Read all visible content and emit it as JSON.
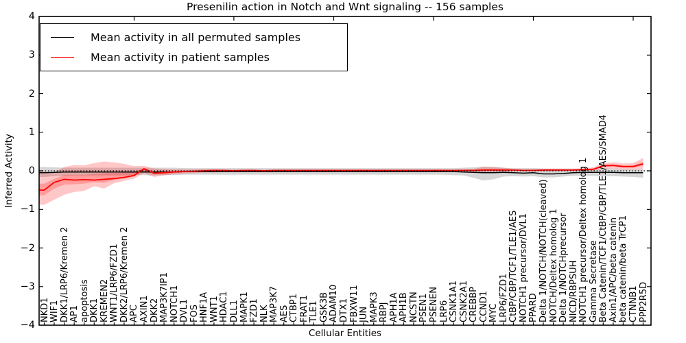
{
  "title": "Presenilin action in Notch and Wnt signaling -- 156 samples",
  "axes": {
    "xlabel": "Cellular Entities",
    "ylabel": "Inferred Activity",
    "ylim": [
      -4,
      4
    ],
    "ytick_labels": [
      "4",
      "3",
      "2",
      "1",
      "0",
      "−1",
      "−2",
      "−3",
      "−4"
    ]
  },
  "legend": {
    "items": [
      {
        "label": "Mean activity in all permuted samples",
        "color": "#000000"
      },
      {
        "label": "Mean activity in patient samples",
        "color": "#ff0000"
      }
    ]
  },
  "chart_data": {
    "type": "line",
    "title": "Presenilin action in Notch and Wnt signaling -- 156 samples",
    "xlabel": "Cellular Entities",
    "ylabel": "Inferred Activity",
    "ylim": [
      -4,
      4
    ],
    "grid": false,
    "legend_position": "upper left",
    "zero_line_style": "dotted",
    "top_tick_indices": [
      9,
      19,
      29,
      39,
      49,
      59
    ],
    "categories": [
      "NKD1",
      "WIF1",
      "DKK1/LRP6/Kremen 2",
      "AP1",
      "apoptosis",
      "DKK1",
      "KREMEN2",
      "WNT1/LRP6/FZD1",
      "DKK2/LRP6/Kremen 2",
      "APC",
      "AXIN1",
      "DKK2",
      "MAP3K7IP1",
      "NOTCH1",
      "DVL1",
      "FOS",
      "HNF1A",
      "WNT1",
      "HDAC1",
      "DLL1",
      "MAPK1",
      "FZD1",
      "NLK",
      "MAP3K7",
      "AES",
      "CTBP1",
      "FRAT1",
      "TLE1",
      "GSK3B",
      "ADAM10",
      "DTX1",
      "FBXW11",
      "JUN",
      "MAPK3",
      "RBPJ",
      "APH1A",
      "APH1B",
      "NCSTN",
      "PSEN1",
      "PSENEN",
      "LRP6",
      "CSNK1A1",
      "CSNK2A1",
      "CREBBP",
      "CCND1",
      "MYC",
      "LRP6/FZD1",
      "CtBP/CBP/TCF1/TLE1/AES",
      "NOTCH1 precursor/DVL1",
      "PPARD",
      "Delta 1/NOTCH/NOTCH(cleaved)",
      "NOTCH/Deltex homolog 1",
      "Delta 1/NOTCHprecursor",
      "NICD/RBPSUH",
      "NOTCH1 precursor/Deltex homolog 1",
      "Gamma Secretase",
      "Beta Catenin/TCF1/CtBP/CBP/TLE1/AES/SMAD4",
      "Axin1/APC/beta catenin",
      "beta catenin/beta TrCP1",
      "CTNNB1",
      "PPP2R5D"
    ],
    "series": [
      {
        "name": "Mean activity in all permuted samples",
        "line_color": "#000000",
        "band_color": "rgba(0,0,0,0.16)",
        "mean": [
          -0.05,
          -0.04,
          -0.03,
          -0.03,
          -0.03,
          -0.03,
          -0.03,
          -0.03,
          -0.03,
          -0.03,
          -0.03,
          -0.03,
          -0.03,
          -0.03,
          -0.02,
          -0.02,
          -0.02,
          -0.02,
          -0.02,
          -0.02,
          -0.02,
          -0.02,
          -0.02,
          -0.02,
          -0.02,
          -0.02,
          -0.02,
          -0.02,
          -0.02,
          -0.02,
          -0.02,
          -0.02,
          -0.02,
          -0.02,
          -0.02,
          -0.02,
          -0.02,
          -0.02,
          -0.02,
          -0.02,
          -0.02,
          -0.02,
          -0.03,
          -0.04,
          -0.05,
          -0.05,
          -0.04,
          -0.05,
          -0.06,
          -0.05,
          -0.08,
          -0.08,
          -0.07,
          -0.05,
          -0.04,
          -0.04,
          -0.04,
          -0.04,
          -0.05,
          -0.05,
          -0.05
        ],
        "band_low": [
          -0.16,
          -0.14,
          -0.13,
          -0.12,
          -0.12,
          -0.12,
          -0.12,
          -0.12,
          -0.12,
          -0.11,
          -0.11,
          -0.12,
          -0.11,
          -0.11,
          -0.1,
          -0.1,
          -0.1,
          -0.1,
          -0.1,
          -0.1,
          -0.1,
          -0.1,
          -0.1,
          -0.1,
          -0.1,
          -0.1,
          -0.1,
          -0.1,
          -0.1,
          -0.1,
          -0.1,
          -0.1,
          -0.1,
          -0.1,
          -0.1,
          -0.1,
          -0.1,
          -0.1,
          -0.1,
          -0.1,
          -0.1,
          -0.11,
          -0.12,
          -0.18,
          -0.25,
          -0.22,
          -0.15,
          -0.14,
          -0.15,
          -0.14,
          -0.17,
          -0.17,
          -0.15,
          -0.13,
          -0.13,
          -0.13,
          -0.14,
          -0.14,
          -0.15,
          -0.16,
          -0.18
        ],
        "band_high": [
          0.1,
          0.09,
          0.08,
          0.08,
          0.08,
          0.08,
          0.08,
          0.08,
          0.08,
          0.08,
          0.08,
          0.08,
          0.08,
          0.08,
          0.07,
          0.07,
          0.07,
          0.07,
          0.07,
          0.07,
          0.07,
          0.07,
          0.07,
          0.07,
          0.07,
          0.07,
          0.07,
          0.07,
          0.07,
          0.07,
          0.07,
          0.07,
          0.07,
          0.07,
          0.07,
          0.07,
          0.07,
          0.07,
          0.07,
          0.07,
          0.07,
          0.07,
          0.08,
          0.09,
          0.11,
          0.1,
          0.08,
          0.07,
          0.07,
          0.07,
          0.06,
          0.06,
          0.06,
          0.06,
          0.06,
          0.06,
          0.06,
          0.06,
          0.05,
          0.05,
          0.05
        ]
      },
      {
        "name": "Mean activity in patient samples",
        "line_color": "#ff0000",
        "band_color": "rgba(255,0,0,0.22)",
        "mean": [
          -0.5,
          -0.3,
          -0.22,
          -0.24,
          -0.23,
          -0.24,
          -0.22,
          -0.2,
          -0.17,
          -0.12,
          0.05,
          -0.06,
          -0.05,
          -0.03,
          -0.02,
          -0.01,
          0.0,
          0.01,
          0.01,
          0.0,
          0.01,
          0.01,
          0.0,
          0.01,
          0.01,
          0.01,
          0.01,
          0.01,
          0.01,
          0.01,
          0.01,
          0.01,
          0.01,
          0.01,
          0.01,
          0.01,
          0.01,
          0.01,
          0.01,
          0.01,
          0.01,
          0.01,
          0.01,
          0.01,
          0.02,
          0.02,
          0.02,
          0.02,
          0.01,
          0.01,
          0.02,
          0.02,
          0.02,
          0.02,
          0.03,
          0.04,
          0.13,
          0.14,
          0.11,
          0.11,
          0.18
        ],
        "band_low": [
          -0.88,
          -0.75,
          -0.62,
          -0.55,
          -0.52,
          -0.4,
          -0.46,
          -0.32,
          -0.26,
          -0.2,
          -0.06,
          -0.16,
          -0.12,
          -0.09,
          -0.07,
          -0.06,
          -0.04,
          -0.04,
          -0.03,
          -0.03,
          -0.02,
          -0.02,
          -0.02,
          -0.02,
          -0.02,
          -0.02,
          -0.02,
          -0.02,
          -0.01,
          -0.01,
          -0.01,
          -0.01,
          -0.01,
          -0.01,
          -0.01,
          -0.01,
          -0.01,
          -0.01,
          -0.01,
          -0.01,
          -0.01,
          -0.01,
          -0.02,
          -0.02,
          -0.03,
          -0.02,
          -0.02,
          -0.01,
          -0.01,
          -0.01,
          -0.01,
          -0.01,
          -0.01,
          0.0,
          0.0,
          0.0,
          0.05,
          0.06,
          0.04,
          0.04,
          0.05
        ],
        "band_high": [
          -0.02,
          -0.04,
          0.1,
          0.15,
          0.14,
          0.2,
          0.24,
          0.22,
          0.18,
          0.12,
          0.13,
          0.06,
          0.05,
          0.04,
          0.04,
          0.04,
          0.05,
          0.04,
          0.03,
          0.04,
          0.03,
          0.03,
          0.03,
          0.03,
          0.03,
          0.03,
          0.03,
          0.03,
          0.03,
          0.03,
          0.03,
          0.03,
          0.03,
          0.03,
          0.03,
          0.03,
          0.03,
          0.03,
          0.03,
          0.03,
          0.03,
          0.03,
          0.04,
          0.05,
          0.1,
          0.1,
          0.08,
          0.05,
          0.04,
          0.04,
          0.05,
          0.05,
          0.05,
          0.05,
          0.06,
          0.09,
          0.2,
          0.22,
          0.19,
          0.2,
          0.33
        ]
      }
    ]
  }
}
